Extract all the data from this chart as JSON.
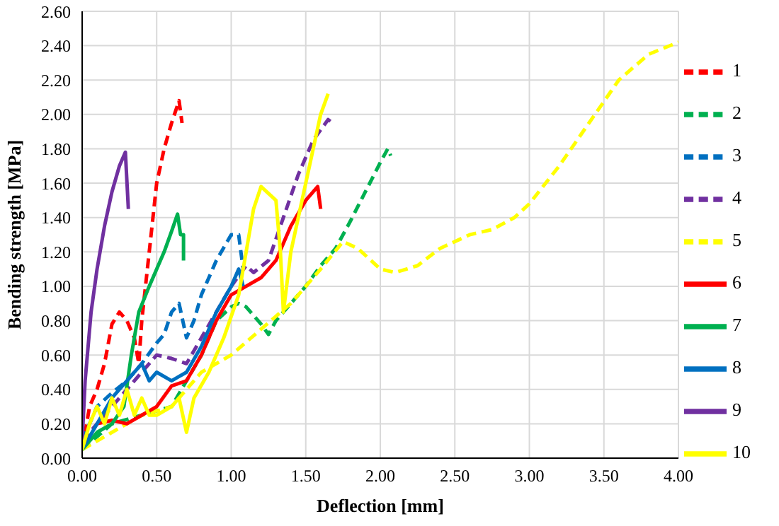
{
  "chart_data": {
    "type": "line",
    "xlabel": "Deflection [mm]",
    "ylabel": "Bending strength [MPa]",
    "xlim": [
      0,
      4
    ],
    "xticks": [
      {
        "value": 0,
        "label": "0.00"
      },
      {
        "value": 0.5,
        "label": "0.50"
      },
      {
        "value": 1,
        "label": "1.00"
      },
      {
        "value": 1.5,
        "label": "1.50"
      },
      {
        "value": 2,
        "label": "2.00"
      },
      {
        "value": 2.5,
        "label": "2.50"
      },
      {
        "value": 3,
        "label": "3.00"
      },
      {
        "value": 3.5,
        "label": "3.50"
      },
      {
        "value": 4,
        "label": "4.00"
      }
    ],
    "ylim": [
      0,
      2.6
    ],
    "yticks": [
      {
        "value": 0,
        "label": "0.00"
      },
      {
        "value": 0.2,
        "label": "0.20"
      },
      {
        "value": 0.4,
        "label": "0.40"
      },
      {
        "value": 0.6,
        "label": "0.60"
      },
      {
        "value": 0.8,
        "label": "0.80"
      },
      {
        "value": 1,
        "label": "1.00"
      },
      {
        "value": 1.2,
        "label": "1.20"
      },
      {
        "value": 1.4,
        "label": "1.40"
      },
      {
        "value": 1.6,
        "label": "1.60"
      },
      {
        "value": 1.8,
        "label": "1.80"
      },
      {
        "value": 2,
        "label": "2.00"
      },
      {
        "value": 2.2,
        "label": "2.20"
      },
      {
        "value": 2.4,
        "label": "2.40"
      },
      {
        "value": 2.6,
        "label": "2.60"
      }
    ],
    "grid": true,
    "legend": "right",
    "marker": "none",
    "series": [
      {
        "name": "1",
        "color": "#ff0000",
        "line_style": "dashed",
        "x": [
          0,
          0.05,
          0.1,
          0.15,
          0.2,
          0.25,
          0.3,
          0.35,
          0.38,
          0.4,
          0.45,
          0.5,
          0.55,
          0.6,
          0.65,
          0.67
        ],
        "values": [
          0.05,
          0.3,
          0.4,
          0.55,
          0.78,
          0.85,
          0.8,
          0.7,
          0.55,
          0.8,
          1.2,
          1.6,
          1.8,
          1.95,
          2.08,
          1.95
        ]
      },
      {
        "name": "2",
        "color": "#00b050",
        "line_style": "dashed",
        "x": [
          0,
          0.2,
          0.4,
          0.6,
          0.8,
          0.9,
          1,
          1.05,
          1.1,
          1.2,
          1.25,
          1.3,
          1.4,
          1.5,
          1.6,
          1.7,
          1.8,
          1.9,
          2,
          2.05,
          2.07
        ],
        "values": [
          0.05,
          0.2,
          0.25,
          0.3,
          0.6,
          0.8,
          0.88,
          0.9,
          0.88,
          0.78,
          0.72,
          0.8,
          0.9,
          1,
          1.12,
          1.22,
          1.38,
          1.55,
          1.72,
          1.8,
          1.76
        ]
      },
      {
        "name": "3",
        "color": "#0070c0",
        "line_style": "dashed",
        "x": [
          0,
          0.1,
          0.2,
          0.3,
          0.4,
          0.5,
          0.55,
          0.6,
          0.65,
          0.7,
          0.75,
          0.8,
          0.9,
          1,
          1.05,
          1.08
        ],
        "values": [
          0.1,
          0.3,
          0.38,
          0.45,
          0.55,
          0.67,
          0.72,
          0.85,
          0.9,
          0.7,
          0.8,
          0.95,
          1.15,
          1.3,
          1.3,
          1.1
        ]
      },
      {
        "name": "4",
        "color": "#7030a0",
        "line_style": "dashed",
        "x": [
          0,
          0.2,
          0.3,
          0.4,
          0.5,
          0.6,
          0.7,
          0.8,
          0.9,
          1,
          1.1,
          1.15,
          1.25,
          1.35,
          1.45,
          1.55,
          1.65,
          1.68
        ],
        "values": [
          0.1,
          0.3,
          0.4,
          0.5,
          0.6,
          0.58,
          0.55,
          0.7,
          0.85,
          1,
          1.12,
          1.08,
          1.15,
          1.4,
          1.65,
          1.85,
          1.97,
          1.95
        ]
      },
      {
        "name": "5",
        "color": "#ffff00",
        "line_style": "dashed",
        "x": [
          0,
          0.2,
          0.4,
          0.6,
          0.8,
          1,
          1.2,
          1.4,
          1.6,
          1.75,
          1.85,
          2,
          2.1,
          2.25,
          2.4,
          2.6,
          2.75,
          2.9,
          3,
          3.2,
          3.4,
          3.6,
          3.8,
          4
        ],
        "values": [
          0.05,
          0.15,
          0.25,
          0.3,
          0.5,
          0.6,
          0.75,
          0.9,
          1.1,
          1.26,
          1.22,
          1.1,
          1.08,
          1.12,
          1.22,
          1.3,
          1.33,
          1.4,
          1.48,
          1.7,
          1.95,
          2.2,
          2.35,
          2.42
        ]
      },
      {
        "name": "6",
        "color": "#ff0000",
        "line_style": "solid",
        "x": [
          0.1,
          0.2,
          0.3,
          0.4,
          0.5,
          0.6,
          0.7,
          0.8,
          0.9,
          1,
          1.1,
          1.2,
          1.3,
          1.4,
          1.5,
          1.58,
          1.6
        ],
        "values": [
          0.2,
          0.22,
          0.2,
          0.25,
          0.3,
          0.42,
          0.45,
          0.6,
          0.8,
          0.95,
          1,
          1.05,
          1.15,
          1.35,
          1.5,
          1.58,
          1.45
        ]
      },
      {
        "name": "7",
        "color": "#00b050",
        "line_style": "solid",
        "x": [
          0,
          0.1,
          0.2,
          0.28,
          0.33,
          0.38,
          0.45,
          0.55,
          0.6,
          0.64,
          0.66,
          0.68,
          0.68
        ],
        "values": [
          0.05,
          0.15,
          0.2,
          0.3,
          0.6,
          0.85,
          1,
          1.2,
          1.32,
          1.42,
          1.3,
          1.3,
          1.15
        ]
      },
      {
        "name": "8",
        "color": "#0070c0",
        "line_style": "solid",
        "x": [
          0,
          0.1,
          0.2,
          0.3,
          0.4,
          0.45,
          0.5,
          0.6,
          0.7,
          0.8,
          0.9,
          1,
          1.05,
          1.08
        ],
        "values": [
          0.05,
          0.2,
          0.35,
          0.45,
          0.55,
          0.45,
          0.5,
          0.45,
          0.5,
          0.65,
          0.85,
          1,
          1.1,
          1
        ]
      },
      {
        "name": "9",
        "color": "#7030a0",
        "line_style": "solid",
        "x": [
          0,
          0.02,
          0.06,
          0.1,
          0.15,
          0.2,
          0.25,
          0.29,
          0.31
        ],
        "values": [
          0.1,
          0.45,
          0.85,
          1.1,
          1.35,
          1.55,
          1.7,
          1.78,
          1.45
        ]
      },
      {
        "name": "10",
        "color": "#ffff00",
        "line_style": "solid",
        "x": [
          0,
          0.05,
          0.1,
          0.15,
          0.2,
          0.25,
          0.3,
          0.35,
          0.4,
          0.45,
          0.5,
          0.6,
          0.65,
          0.7,
          0.75,
          0.85,
          0.95,
          1.05,
          1.1,
          1.15,
          1.2,
          1.3,
          1.33,
          1.35,
          1.4,
          1.5,
          1.6,
          1.65
        ],
        "values": [
          0.05,
          0.2,
          0.3,
          0.2,
          0.35,
          0.25,
          0.4,
          0.25,
          0.35,
          0.25,
          0.25,
          0.3,
          0.35,
          0.15,
          0.35,
          0.5,
          0.7,
          0.95,
          1.2,
          1.45,
          1.58,
          1.5,
          1.2,
          0.85,
          1.2,
          1.6,
          2,
          2.12
        ]
      }
    ]
  }
}
